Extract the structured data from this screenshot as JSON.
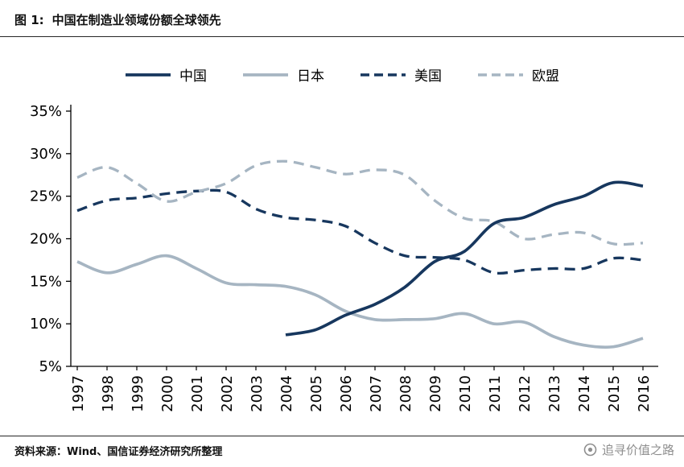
{
  "figure": {
    "label": "图 1:",
    "title": "中国在制造业领域份额全球领先"
  },
  "footer": {
    "source": "资料来源：Wind、国信证券经济研究所整理",
    "watermark": "追寻价值之路"
  },
  "colors": {
    "dark": "#17375e",
    "light": "#a6b5c2",
    "axis": "#000000",
    "rule": "#262626",
    "watermark_gray": "#8f8f8f"
  },
  "chart_data": {
    "type": "line",
    "title": "中国在制造业领域份额全球领先",
    "x": [
      1997,
      1998,
      1999,
      2000,
      2001,
      2002,
      2003,
      2004,
      2005,
      2006,
      2007,
      2008,
      2009,
      2010,
      2011,
      2012,
      2013,
      2014,
      2015,
      2016
    ],
    "ylim": [
      5,
      35
    ],
    "ytick_step": 5,
    "ytick_suffix": "%",
    "grid": false,
    "legend_position": "top",
    "series": [
      {
        "name": "中国",
        "style": "solid",
        "colorKey": "dark",
        "values": [
          null,
          null,
          null,
          null,
          null,
          null,
          null,
          8.7,
          9.3,
          11.0,
          12.3,
          14.3,
          17.3,
          18.5,
          21.8,
          22.5,
          24.0,
          25.0,
          26.6,
          26.2
        ]
      },
      {
        "name": "日本",
        "style": "solid",
        "colorKey": "light",
        "values": [
          17.3,
          16.0,
          17.0,
          18.0,
          16.5,
          14.8,
          14.6,
          14.4,
          13.4,
          11.5,
          10.5,
          10.5,
          10.6,
          11.2,
          10.0,
          10.2,
          8.5,
          7.5,
          7.3,
          8.3
        ]
      },
      {
        "name": "美国",
        "style": "dashed",
        "colorKey": "dark",
        "values": [
          23.3,
          24.5,
          24.8,
          25.3,
          25.6,
          25.5,
          23.5,
          22.5,
          22.2,
          21.5,
          19.5,
          18.0,
          17.8,
          17.5,
          16.0,
          16.3,
          16.5,
          16.5,
          17.7,
          17.5
        ]
      },
      {
        "name": "欧盟",
        "style": "dashed",
        "colorKey": "light",
        "values": [
          27.2,
          28.4,
          26.5,
          24.4,
          25.5,
          26.5,
          28.6,
          29.1,
          28.4,
          27.6,
          28.1,
          27.5,
          24.5,
          22.4,
          22.0,
          20.0,
          20.5,
          20.7,
          19.4,
          19.5
        ]
      }
    ]
  }
}
